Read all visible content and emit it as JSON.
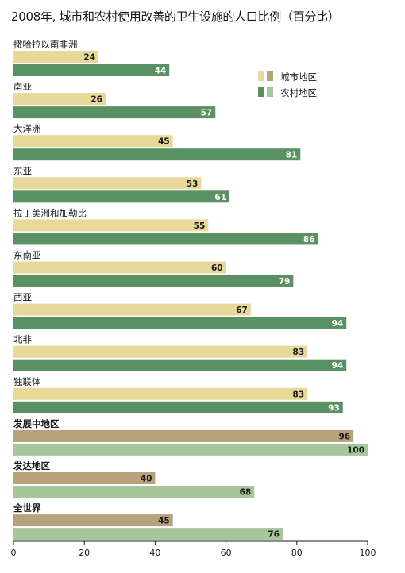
{
  "chart_data": {
    "type": "bar",
    "orientation": "horizontal",
    "title": "2008年, 城市和农村使用改善的卫生设施的人口比例（百分比）",
    "categories": [
      "撒哈拉以南非洲",
      "南亚",
      "大洋洲",
      "东亚",
      "拉丁美洲和加勒比",
      "东南亚",
      "西亚",
      "北非",
      "独联体",
      "发展中地区",
      "发达地区",
      "全世界"
    ],
    "aggregate_categories": [
      "发展中地区",
      "发达地区",
      "全世界"
    ],
    "series": [
      {
        "name": "城市地区",
        "values": [
          24,
          26,
          45,
          53,
          55,
          60,
          67,
          83,
          83,
          96,
          40,
          45
        ]
      },
      {
        "name": "农村地区",
        "values": [
          44,
          57,
          81,
          61,
          86,
          79,
          94,
          94,
          93,
          100,
          68,
          76
        ]
      }
    ],
    "xlim": [
      0,
      100
    ],
    "xticks": [
      0,
      20,
      40,
      60,
      80,
      100
    ],
    "legend_position": "upper-right",
    "grid": false,
    "colors": {
      "urban": "#e8d89a",
      "rural": "#5a9162",
      "urban_aggregate": "#b7a27d",
      "rural_aggregate": "#a6c79c",
      "urban_value_text": "#1a1a1a",
      "rural_value_text": "#ffffff",
      "aggregate_value_text": "#1a1a1a",
      "axis": "#1a1a1a"
    }
  }
}
